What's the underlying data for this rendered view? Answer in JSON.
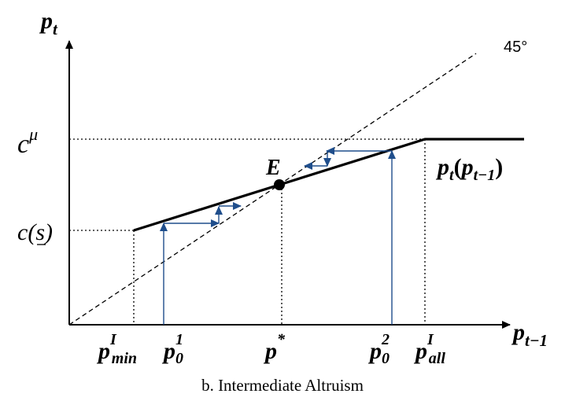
{
  "axes": {
    "y_label": {
      "main": "p",
      "sub": "t"
    },
    "x_label": {
      "main": "p",
      "sub": "t−1"
    }
  },
  "diagonal_label": "45°",
  "y_ticks": {
    "c_mu": {
      "main": "c",
      "sup": "μ"
    },
    "c_s": {
      "pre": "c(",
      "sym": "s",
      "post": ")"
    }
  },
  "x_ticks": {
    "p_min": {
      "main": "p",
      "sup": "I",
      "sub": "min"
    },
    "p0_1": {
      "main": "p",
      "sup": "1",
      "sub": "0"
    },
    "p_star": {
      "main": "p",
      "sup": "*"
    },
    "p0_2": {
      "main": "p",
      "sup": "2",
      "sub": "0"
    },
    "p_all": {
      "main": "p",
      "sup": "I",
      "sub": "all"
    }
  },
  "equilibrium_label": "E",
  "curve_label": {
    "main": "p",
    "sub": "t",
    "arg_open": "(",
    "arg_main": "p",
    "arg_sub": "t−1",
    "arg_close": ")"
  },
  "caption": "b. Intermediate Altruism",
  "colors": {
    "axis": "#000000",
    "arrow": "#1f4e8c"
  }
}
